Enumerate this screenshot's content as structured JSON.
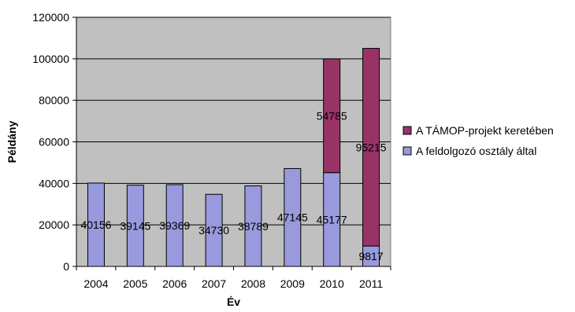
{
  "chart_data": {
    "type": "bar",
    "stacked": true,
    "categories": [
      "2004",
      "2005",
      "2006",
      "2007",
      "2008",
      "2009",
      "2010",
      "2011"
    ],
    "series": [
      {
        "name": "A feldolgozó osztály által",
        "values": [
          40156,
          39145,
          39369,
          34730,
          38789,
          47145,
          45177,
          9817
        ],
        "color": "#9999dd"
      },
      {
        "name": "A TÁMOP-projekt keretében",
        "values": [
          null,
          null,
          null,
          null,
          null,
          null,
          54785,
          95215
        ],
        "color": "#993366"
      }
    ],
    "xlabel": "Év",
    "ylabel": "Példány",
    "ylim": [
      0,
      120000
    ],
    "yticks": [
      0,
      20000,
      40000,
      60000,
      80000,
      100000,
      120000
    ],
    "grid": true,
    "plot_background": "#c0c0c0",
    "legend_position": "right",
    "legend_order": [
      1,
      0
    ],
    "show_data_labels": true
  }
}
